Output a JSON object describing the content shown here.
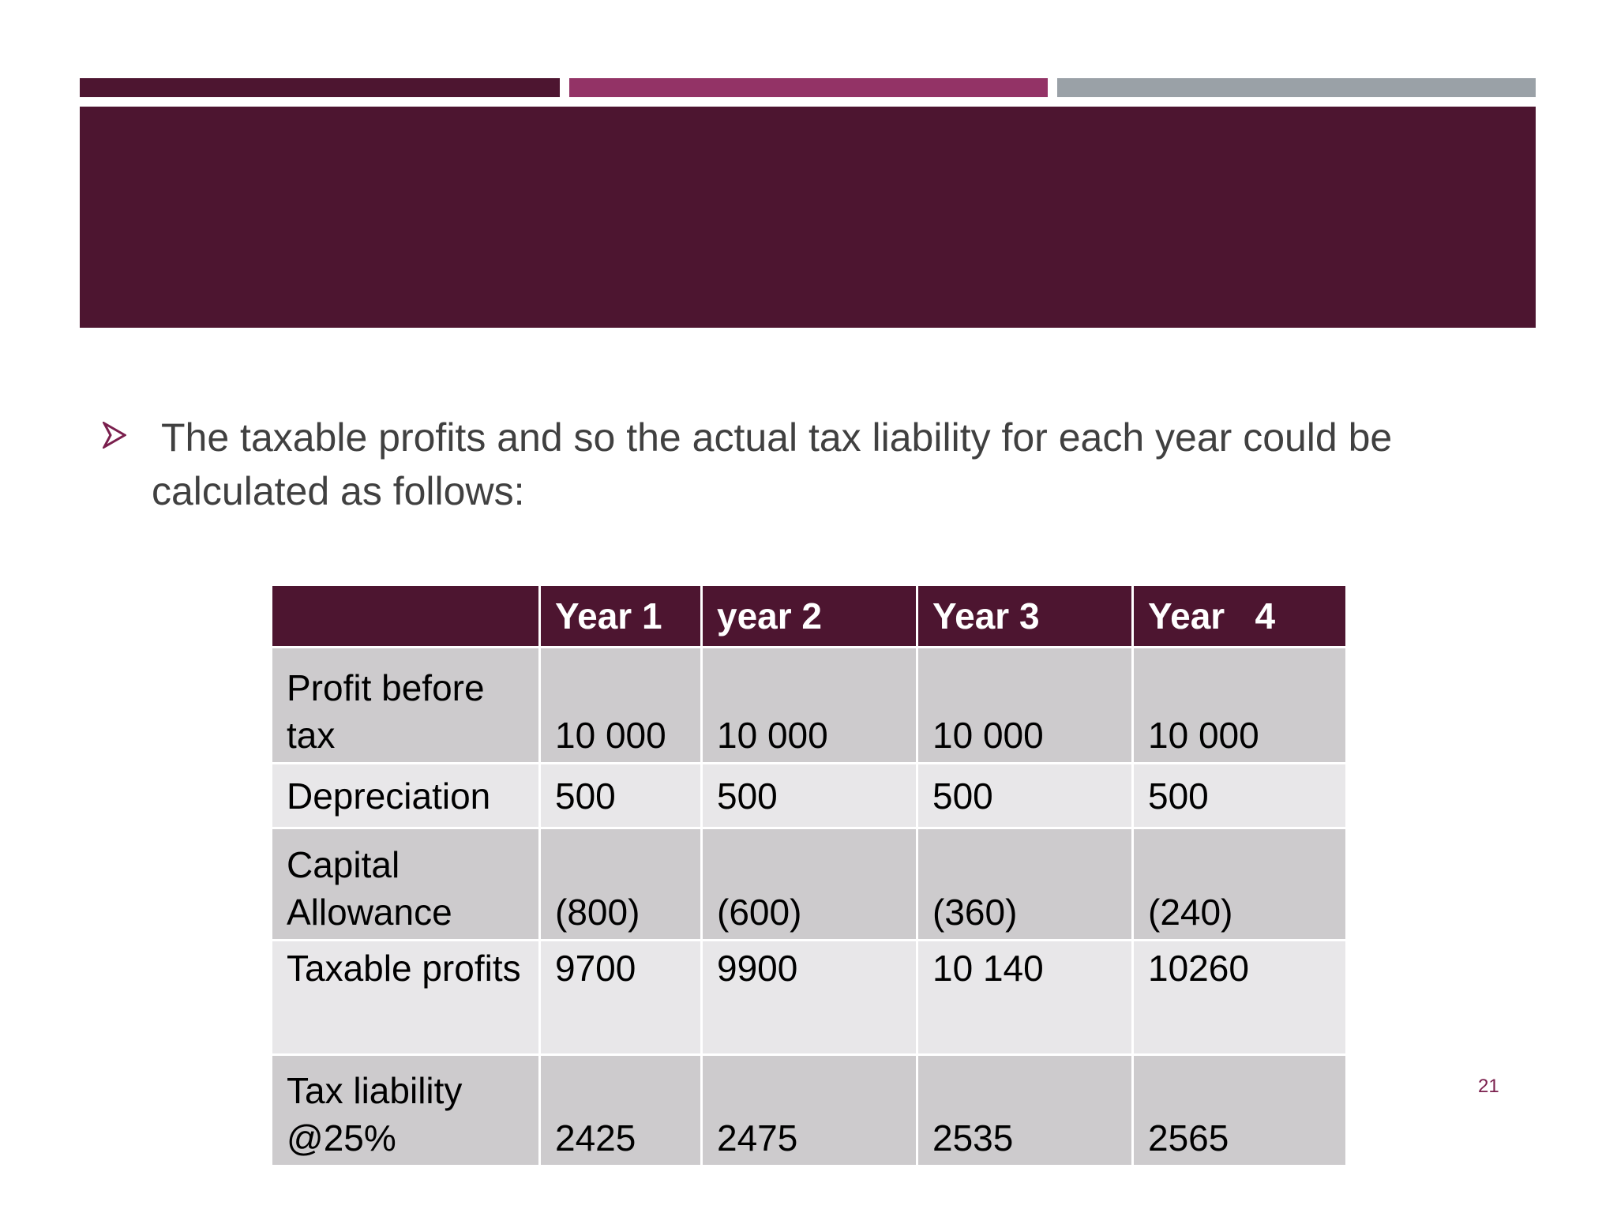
{
  "slide": {
    "bullet": "The taxable profits and  so the actual  tax liability for each year could be calculated as follows:",
    "table": {
      "header": [
        "Year 1",
        "year 2",
        "Year 3",
        "Year   4"
      ],
      "rows": [
        [
          "Profit before tax",
          "10 000",
          "10 000",
          "10 000",
          "10 000"
        ],
        [
          "Depreciation",
          "500",
          "500",
          "500",
          "500"
        ],
        [
          "Capital Allowance",
          "(800)",
          "(600)",
          "(360)",
          "(240)"
        ],
        [
          "Taxable profits",
          "9700",
          "9900",
          "10 140",
          "10260"
        ],
        [
          "Tax liability @25%",
          "2425",
          "2475",
          "2535",
          "2565"
        ]
      ]
    },
    "page_number": "21"
  }
}
